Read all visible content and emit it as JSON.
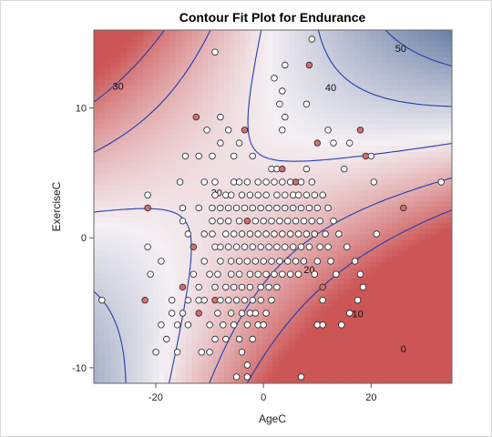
{
  "chart_data": {
    "type": "contour",
    "title": "Contour Fit Plot for Endurance",
    "xlabel": "AgeC",
    "ylabel": "ExerciseC",
    "xlim": [
      -31.5,
      35
    ],
    "ylim": [
      -11.2,
      16
    ],
    "x_ticks": [
      -20,
      0,
      20
    ],
    "y_ticks": [
      -10,
      0,
      10
    ],
    "colors": {
      "high": "#cc5555",
      "mid": "#f4f0f4",
      "low": "#4a6593",
      "contour_line": "#1f3fae",
      "point_stroke": "#222222"
    },
    "contour_levels": [
      {
        "value": 0,
        "label": "0",
        "label_at": [
          26,
          -8.8
        ]
      },
      {
        "value": 10,
        "label": "10",
        "label_at": [
          17.5,
          -6.1
        ]
      },
      {
        "value": 20,
        "label": "20",
        "label_at": [
          8.5,
          -2.7
        ]
      },
      {
        "value": 30,
        "label": "30",
        "label_at": [
          -27,
          11.4
        ],
        "label2": "30",
        "label2_at": [
          -8.7,
          3.2
        ]
      },
      {
        "value": 40,
        "label": "40",
        "label_at": [
          12.5,
          11.3
        ]
      },
      {
        "value": 50,
        "label": "50",
        "label_at": [
          25.5,
          14.3
        ]
      }
    ],
    "points": [
      {
        "x": -30,
        "y": -4.8,
        "c": "w"
      },
      {
        "x": -22,
        "y": -4.8,
        "c": "r"
      },
      {
        "x": -21.5,
        "y": 3.3,
        "c": "w"
      },
      {
        "x": -21.5,
        "y": 2.3,
        "c": "r"
      },
      {
        "x": -21.5,
        "y": -0.7,
        "c": "w"
      },
      {
        "x": -21,
        "y": -2.8,
        "c": "w"
      },
      {
        "x": -20,
        "y": -8.8,
        "c": "w"
      },
      {
        "x": -19,
        "y": -1.8,
        "c": "w"
      },
      {
        "x": -19,
        "y": -6.7,
        "c": "w"
      },
      {
        "x": -18,
        "y": -7.8,
        "c": "w"
      },
      {
        "x": -17,
        "y": -4.8,
        "c": "w"
      },
      {
        "x": -17,
        "y": -5.8,
        "c": "w"
      },
      {
        "x": -16,
        "y": -6.7,
        "c": "w"
      },
      {
        "x": -16,
        "y": -8.8,
        "c": "w"
      },
      {
        "x": -15.5,
        "y": 4.3,
        "c": "w"
      },
      {
        "x": -15,
        "y": 2.3,
        "c": "w"
      },
      {
        "x": -15,
        "y": 1.3,
        "c": "w"
      },
      {
        "x": -15,
        "y": -3.8,
        "c": "r"
      },
      {
        "x": -15,
        "y": -5.8,
        "c": "w"
      },
      {
        "x": -14.5,
        "y": 6.3,
        "c": "w"
      },
      {
        "x": -14,
        "y": 0.3,
        "c": "w"
      },
      {
        "x": -14,
        "y": -4.8,
        "c": "w"
      },
      {
        "x": -14,
        "y": -6.7,
        "c": "w"
      },
      {
        "x": -13,
        "y": -0.7,
        "c": "r"
      },
      {
        "x": -13,
        "y": -2.8,
        "c": "w"
      },
      {
        "x": -12.5,
        "y": 9.3,
        "c": "r"
      },
      {
        "x": -12,
        "y": 6.3,
        "c": "w"
      },
      {
        "x": -12,
        "y": 2.3,
        "c": "w"
      },
      {
        "x": -12,
        "y": -3.8,
        "c": "w"
      },
      {
        "x": -12,
        "y": -4.8,
        "c": "w"
      },
      {
        "x": -12,
        "y": -5.8,
        "c": "r"
      },
      {
        "x": -11.5,
        "y": -8.8,
        "c": "w"
      },
      {
        "x": -11,
        "y": 4.3,
        "c": "w"
      },
      {
        "x": -11,
        "y": 0.3,
        "c": "w"
      },
      {
        "x": -11,
        "y": -1.8,
        "c": "w"
      },
      {
        "x": -11,
        "y": -4.8,
        "c": "w"
      },
      {
        "x": -10.5,
        "y": 8.3,
        "c": "w"
      },
      {
        "x": -10,
        "y": -2.8,
        "c": "w"
      },
      {
        "x": -10,
        "y": -6.7,
        "c": "w"
      },
      {
        "x": -10,
        "y": -8.8,
        "c": "w"
      },
      {
        "x": -9.5,
        "y": 6.3,
        "c": "w"
      },
      {
        "x": -9.5,
        "y": 2.3,
        "c": "w"
      },
      {
        "x": -9.5,
        "y": 1.3,
        "c": "w"
      },
      {
        "x": -9.5,
        "y": 0.3,
        "c": "w"
      },
      {
        "x": -9,
        "y": 14.3,
        "c": "w"
      },
      {
        "x": -9,
        "y": 4.3,
        "c": "w"
      },
      {
        "x": -9,
        "y": 3.3,
        "c": "w"
      },
      {
        "x": -9,
        "y": -0.7,
        "c": "w"
      },
      {
        "x": -9,
        "y": -3.8,
        "c": "w"
      },
      {
        "x": -9,
        "y": -4.8,
        "c": "r"
      },
      {
        "x": -9,
        "y": -7.8,
        "c": "w"
      },
      {
        "x": -8.5,
        "y": -2.8,
        "c": "w"
      },
      {
        "x": -8.5,
        "y": -5.8,
        "c": "w"
      },
      {
        "x": -8,
        "y": 9.3,
        "c": "w"
      },
      {
        "x": -8,
        "y": 7.3,
        "c": "w"
      },
      {
        "x": -8,
        "y": 2.3,
        "c": "w"
      },
      {
        "x": -8,
        "y": 1.3,
        "c": "w"
      },
      {
        "x": -8,
        "y": -0.7,
        "c": "w"
      },
      {
        "x": -8,
        "y": -1.8,
        "c": "w"
      },
      {
        "x": -8,
        "y": -4.8,
        "c": "w"
      },
      {
        "x": -7.5,
        "y": -6.7,
        "c": "w"
      },
      {
        "x": -7,
        "y": 3.3,
        "c": "w"
      },
      {
        "x": -7,
        "y": 0.3,
        "c": "w"
      },
      {
        "x": -7,
        "y": -3.8,
        "c": "w"
      },
      {
        "x": -7,
        "y": -7.8,
        "c": "w"
      },
      {
        "x": -6.5,
        "y": 8.3,
        "c": "w"
      },
      {
        "x": -6.5,
        "y": 2.3,
        "c": "w"
      },
      {
        "x": -6.5,
        "y": 1.3,
        "c": "w"
      },
      {
        "x": -6.5,
        "y": -0.7,
        "c": "w"
      },
      {
        "x": -6.5,
        "y": -4.8,
        "c": "w"
      },
      {
        "x": -6,
        "y": 3.3,
        "c": "w"
      },
      {
        "x": -6,
        "y": -1.8,
        "c": "w"
      },
      {
        "x": -6,
        "y": -2.8,
        "c": "w"
      },
      {
        "x": -6,
        "y": -5.8,
        "c": "w"
      },
      {
        "x": -5.5,
        "y": 6.3,
        "c": "w"
      },
      {
        "x": -5.5,
        "y": 4.3,
        "c": "w"
      },
      {
        "x": -5.5,
        "y": 0.3,
        "c": "w"
      },
      {
        "x": -5.5,
        "y": -3.8,
        "c": "w"
      },
      {
        "x": -5.5,
        "y": -6.7,
        "c": "w"
      },
      {
        "x": -5,
        "y": 2.3,
        "c": "w"
      },
      {
        "x": -5,
        "y": -0.7,
        "c": "w"
      },
      {
        "x": -5,
        "y": -4.8,
        "c": "w"
      },
      {
        "x": -5,
        "y": -10.7,
        "c": "w"
      },
      {
        "x": -4.5,
        "y": 7.3,
        "c": "w"
      },
      {
        "x": -4.5,
        "y": 4.3,
        "c": "w"
      },
      {
        "x": -4.5,
        "y": 1.3,
        "c": "w"
      },
      {
        "x": -4.5,
        "y": -1.8,
        "c": "w"
      },
      {
        "x": -4.5,
        "y": -2.8,
        "c": "w"
      },
      {
        "x": -4.5,
        "y": -7.8,
        "c": "w"
      },
      {
        "x": -4,
        "y": 3.3,
        "c": "w"
      },
      {
        "x": -4,
        "y": 0.3,
        "c": "w"
      },
      {
        "x": -4,
        "y": -3.8,
        "c": "w"
      },
      {
        "x": -4,
        "y": -5.8,
        "c": "w"
      },
      {
        "x": -4,
        "y": -8.8,
        "c": "w"
      },
      {
        "x": -3.5,
        "y": 8.3,
        "c": "r"
      },
      {
        "x": -3.5,
        "y": 2.3,
        "c": "w"
      },
      {
        "x": -3.5,
        "y": -0.7,
        "c": "w"
      },
      {
        "x": -3.5,
        "y": -4.8,
        "c": "w"
      },
      {
        "x": -3,
        "y": 4.3,
        "c": "w"
      },
      {
        "x": -3,
        "y": 1.3,
        "c": "r"
      },
      {
        "x": -3,
        "y": -1.8,
        "c": "w"
      },
      {
        "x": -3,
        "y": -6.7,
        "c": "w"
      },
      {
        "x": -3,
        "y": -9.8,
        "c": "w"
      },
      {
        "x": -3,
        "y": -10.7,
        "c": "w"
      },
      {
        "x": -2.5,
        "y": 3.3,
        "c": "w"
      },
      {
        "x": -2.5,
        "y": 0.3,
        "c": "w"
      },
      {
        "x": -2.5,
        "y": -2.8,
        "c": "w"
      },
      {
        "x": -2.5,
        "y": -3.8,
        "c": "w"
      },
      {
        "x": -2.5,
        "y": -5.8,
        "c": "w"
      },
      {
        "x": -2,
        "y": 6.3,
        "c": "w"
      },
      {
        "x": -2,
        "y": 2.3,
        "c": "w"
      },
      {
        "x": -2,
        "y": -0.7,
        "c": "w"
      },
      {
        "x": -2,
        "y": -4.8,
        "c": "w"
      },
      {
        "x": -2,
        "y": -7.8,
        "c": "w"
      },
      {
        "x": -1.5,
        "y": 1.3,
        "c": "w"
      },
      {
        "x": -1.5,
        "y": -1.8,
        "c": "w"
      },
      {
        "x": -1.5,
        "y": -5.8,
        "c": "w"
      },
      {
        "x": -1,
        "y": 4.3,
        "c": "w"
      },
      {
        "x": -1,
        "y": 3.3,
        "c": "w"
      },
      {
        "x": -1,
        "y": 0.3,
        "c": "w"
      },
      {
        "x": -1,
        "y": -2.8,
        "c": "w"
      },
      {
        "x": -1,
        "y": -6.7,
        "c": "w"
      },
      {
        "x": -0.5,
        "y": 2.3,
        "c": "w"
      },
      {
        "x": -0.5,
        "y": -0.7,
        "c": "w"
      },
      {
        "x": -0.5,
        "y": -3.8,
        "c": "w"
      },
      {
        "x": -0.5,
        "y": -4.8,
        "c": "w"
      },
      {
        "x": 0,
        "y": 1.3,
        "c": "w"
      },
      {
        "x": 0,
        "y": -1.8,
        "c": "w"
      },
      {
        "x": 0,
        "y": -6.7,
        "c": "w"
      },
      {
        "x": 0.5,
        "y": 4.3,
        "c": "w"
      },
      {
        "x": 0.5,
        "y": 3.3,
        "c": "w"
      },
      {
        "x": 0.5,
        "y": 0.3,
        "c": "w"
      },
      {
        "x": 0.5,
        "y": -2.8,
        "c": "w"
      },
      {
        "x": 0.5,
        "y": -5.8,
        "c": "w"
      },
      {
        "x": 1,
        "y": 2.3,
        "c": "w"
      },
      {
        "x": 1,
        "y": -0.7,
        "c": "w"
      },
      {
        "x": 1,
        "y": -3.8,
        "c": "w"
      },
      {
        "x": 1.5,
        "y": 5.3,
        "c": "w"
      },
      {
        "x": 1.5,
        "y": 1.3,
        "c": "w"
      },
      {
        "x": 1.5,
        "y": -1.8,
        "c": "w"
      },
      {
        "x": 1.5,
        "y": -4.8,
        "c": "w"
      },
      {
        "x": 2,
        "y": 4.3,
        "c": "w"
      },
      {
        "x": 2,
        "y": 0.3,
        "c": "w"
      },
      {
        "x": 2,
        "y": -2.8,
        "c": "w"
      },
      {
        "x": 2.5,
        "y": 5.3,
        "c": "w"
      },
      {
        "x": 2.5,
        "y": 3.3,
        "c": "w"
      },
      {
        "x": 2.5,
        "y": 2.3,
        "c": "w"
      },
      {
        "x": 2.5,
        "y": -0.7,
        "c": "w"
      },
      {
        "x": 2.5,
        "y": -3.8,
        "c": "w"
      },
      {
        "x": 3,
        "y": 1.3,
        "c": "w"
      },
      {
        "x": 3,
        "y": -1.8,
        "c": "w"
      },
      {
        "x": 3.5,
        "y": 5.3,
        "c": "r"
      },
      {
        "x": 3.5,
        "y": 4.3,
        "c": "w"
      },
      {
        "x": 3.5,
        "y": 0.3,
        "c": "w"
      },
      {
        "x": 3.5,
        "y": -2.8,
        "c": "w"
      },
      {
        "x": 4,
        "y": 3.3,
        "c": "w"
      },
      {
        "x": 4,
        "y": 2.3,
        "c": "w"
      },
      {
        "x": 4,
        "y": -0.7,
        "c": "w"
      },
      {
        "x": 4.5,
        "y": 1.3,
        "c": "w"
      },
      {
        "x": 4.5,
        "y": -1.8,
        "c": "w"
      },
      {
        "x": 5,
        "y": 4.3,
        "c": "w"
      },
      {
        "x": 5,
        "y": 0.3,
        "c": "w"
      },
      {
        "x": 5,
        "y": -2.8,
        "c": "w"
      },
      {
        "x": 5.5,
        "y": 3.3,
        "c": "w"
      },
      {
        "x": 5.5,
        "y": 2.3,
        "c": "w"
      },
      {
        "x": 5.5,
        "y": -0.7,
        "c": "w"
      },
      {
        "x": 6,
        "y": 4.3,
        "c": "r"
      },
      {
        "x": 6,
        "y": 1.3,
        "c": "w"
      },
      {
        "x": 6,
        "y": -1.8,
        "c": "w"
      },
      {
        "x": 6.5,
        "y": 3.3,
        "c": "w"
      },
      {
        "x": 6.5,
        "y": 0.3,
        "c": "w"
      },
      {
        "x": 6.5,
        "y": -2.8,
        "c": "w"
      },
      {
        "x": 7,
        "y": 4.3,
        "c": "w"
      },
      {
        "x": 7,
        "y": 2.3,
        "c": "w"
      },
      {
        "x": 7,
        "y": -0.7,
        "c": "w"
      },
      {
        "x": 7,
        "y": -10.7,
        "c": "w"
      },
      {
        "x": 7.5,
        "y": 1.3,
        "c": "w"
      },
      {
        "x": 7.5,
        "y": -1.8,
        "c": "w"
      },
      {
        "x": 8,
        "y": 5.3,
        "c": "w"
      },
      {
        "x": 8,
        "y": 3.3,
        "c": "w"
      },
      {
        "x": 8,
        "y": 0.3,
        "c": "w"
      },
      {
        "x": 8.5,
        "y": 2.3,
        "c": "w"
      },
      {
        "x": 8.5,
        "y": -0.7,
        "c": "w"
      },
      {
        "x": 9,
        "y": 15.3,
        "c": "w"
      },
      {
        "x": 9,
        "y": 4.3,
        "c": "w"
      },
      {
        "x": 9,
        "y": 1.3,
        "c": "w"
      },
      {
        "x": 9.5,
        "y": 3.3,
        "c": "w"
      },
      {
        "x": 9.5,
        "y": 0.3,
        "c": "w"
      },
      {
        "x": 9.5,
        "y": -2.8,
        "c": "w"
      },
      {
        "x": 10,
        "y": 7.3,
        "c": "r"
      },
      {
        "x": 10,
        "y": 2.3,
        "c": "w"
      },
      {
        "x": 10,
        "y": -1.8,
        "c": "w"
      },
      {
        "x": 10.5,
        "y": 1.3,
        "c": "w"
      },
      {
        "x": 10.5,
        "y": -0.7,
        "c": "w"
      },
      {
        "x": 11,
        "y": 3.3,
        "c": "w"
      },
      {
        "x": 11,
        "y": -3.8,
        "c": "r"
      },
      {
        "x": 11,
        "y": -4.8,
        "c": "w"
      },
      {
        "x": 11.5,
        "y": 0.3,
        "c": "w"
      },
      {
        "x": 12,
        "y": 8.3,
        "c": "w"
      },
      {
        "x": 12,
        "y": 2.3,
        "c": "w"
      },
      {
        "x": 12,
        "y": -0.7,
        "c": "w"
      },
      {
        "x": 12.5,
        "y": -1.8,
        "c": "w"
      },
      {
        "x": 13,
        "y": 7.3,
        "c": "w"
      },
      {
        "x": 13,
        "y": 1.3,
        "c": "w"
      },
      {
        "x": 13.5,
        "y": -2.8,
        "c": "w"
      },
      {
        "x": 14,
        "y": 0.3,
        "c": "w"
      },
      {
        "x": 14.5,
        "y": -6.7,
        "c": "w"
      },
      {
        "x": 15,
        "y": 5.3,
        "c": "w"
      },
      {
        "x": 15.5,
        "y": -0.7,
        "c": "w"
      },
      {
        "x": 16,
        "y": 7.3,
        "c": "w"
      },
      {
        "x": 16,
        "y": -5.8,
        "c": "w"
      },
      {
        "x": 17,
        "y": -1.8,
        "c": "w"
      },
      {
        "x": 17.5,
        "y": -4.8,
        "c": "w"
      },
      {
        "x": 18,
        "y": 8.3,
        "c": "r"
      },
      {
        "x": 18,
        "y": -2.8,
        "c": "w"
      },
      {
        "x": 18.5,
        "y": -3.8,
        "c": "w"
      },
      {
        "x": 19,
        "y": 6.3,
        "c": "r"
      },
      {
        "x": 20,
        "y": 6.3,
        "c": "w"
      },
      {
        "x": 20.5,
        "y": 4.3,
        "c": "w"
      },
      {
        "x": 21,
        "y": 0.3,
        "c": "w"
      },
      {
        "x": 26,
        "y": 2.3,
        "c": "r"
      },
      {
        "x": 33,
        "y": 4.3,
        "c": "w"
      },
      {
        "x": 10,
        "y": -6.7,
        "c": "w"
      },
      {
        "x": 11,
        "y": -6.7,
        "c": "w"
      },
      {
        "x": 8,
        "y": 10.3,
        "c": "w"
      },
      {
        "x": 3,
        "y": 10.3,
        "c": "w"
      },
      {
        "x": 4,
        "y": 9.3,
        "c": "w"
      },
      {
        "x": 4,
        "y": 13.3,
        "c": "w"
      },
      {
        "x": 2,
        "y": 12.3,
        "c": "w"
      },
      {
        "x": 3.5,
        "y": 11.3,
        "c": "w"
      },
      {
        "x": 8.5,
        "y": 13.3,
        "c": "r"
      },
      {
        "x": 3.5,
        "y": 8.3,
        "c": "w"
      }
    ]
  }
}
